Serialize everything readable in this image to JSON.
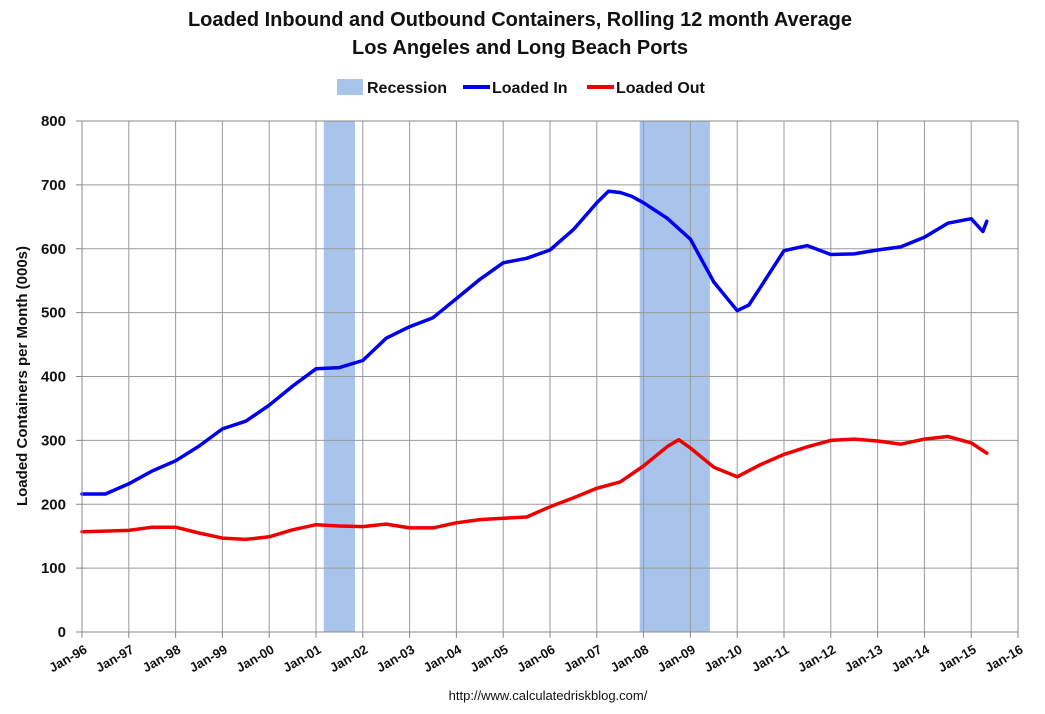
{
  "chart_data": {
    "type": "line",
    "title": [
      "Loaded Inbound and Outbound Containers, Rolling 12 month Average",
      "Los Angeles and Long Beach Ports"
    ],
    "ylabel": "Loaded Containers per Month (000s)",
    "xlabel": "",
    "ylim": [
      0,
      800
    ],
    "yticks": [
      0,
      100,
      200,
      300,
      400,
      500,
      600,
      700,
      800
    ],
    "xlim": [
      "1996-01",
      "2016-01"
    ],
    "xticks": [
      "Jan-96",
      "Jan-97",
      "Jan-98",
      "Jan-99",
      "Jan-00",
      "Jan-01",
      "Jan-02",
      "Jan-03",
      "Jan-04",
      "Jan-05",
      "Jan-06",
      "Jan-07",
      "Jan-08",
      "Jan-09",
      "Jan-10",
      "Jan-11",
      "Jan-12",
      "Jan-13",
      "Jan-14",
      "Jan-15",
      "Jan-16"
    ],
    "grid": true,
    "legend_placement": "top-center",
    "legend": [
      {
        "label": "Recession",
        "color": "#a9c4ea",
        "kind": "band"
      },
      {
        "label": "Loaded In",
        "color": "#0000ee",
        "kind": "line"
      },
      {
        "label": "Loaded Out",
        "color": "#ee0000",
        "kind": "line"
      }
    ],
    "recessions": [
      {
        "start": "2001-03",
        "end": "2001-11"
      },
      {
        "start": "2007-12",
        "end": "2009-06"
      }
    ],
    "series": [
      {
        "name": "Loaded In",
        "color": "#0000ee",
        "points": [
          [
            "1996-01",
            216
          ],
          [
            "1996-07",
            216
          ],
          [
            "1997-01",
            232
          ],
          [
            "1997-07",
            252
          ],
          [
            "1998-01",
            268
          ],
          [
            "1998-07",
            291
          ],
          [
            "1999-01",
            318
          ],
          [
            "1999-07",
            330
          ],
          [
            "2000-01",
            355
          ],
          [
            "2000-07",
            385
          ],
          [
            "2001-01",
            412
          ],
          [
            "2001-07",
            414
          ],
          [
            "2002-01",
            425
          ],
          [
            "2002-07",
            460
          ],
          [
            "2003-01",
            478
          ],
          [
            "2003-07",
            492
          ],
          [
            "2004-01",
            522
          ],
          [
            "2004-07",
            552
          ],
          [
            "2005-01",
            578
          ],
          [
            "2005-07",
            585
          ],
          [
            "2006-01",
            598
          ],
          [
            "2006-07",
            630
          ],
          [
            "2007-01",
            672
          ],
          [
            "2007-04",
            690
          ],
          [
            "2007-07",
            688
          ],
          [
            "2007-10",
            682
          ],
          [
            "2008-01",
            672
          ],
          [
            "2008-07",
            648
          ],
          [
            "2009-01",
            615
          ],
          [
            "2009-07",
            548
          ],
          [
            "2010-01",
            503
          ],
          [
            "2010-04",
            512
          ],
          [
            "2010-07",
            540
          ],
          [
            "2011-01",
            597
          ],
          [
            "2011-07",
            605
          ],
          [
            "2012-01",
            591
          ],
          [
            "2012-07",
            592
          ],
          [
            "2013-01",
            598
          ],
          [
            "2013-07",
            603
          ],
          [
            "2014-01",
            618
          ],
          [
            "2014-07",
            640
          ],
          [
            "2015-01",
            647
          ],
          [
            "2015-04",
            627
          ],
          [
            "2015-05",
            643
          ]
        ]
      },
      {
        "name": "Loaded Out",
        "color": "#ee0000",
        "points": [
          [
            "1996-01",
            157
          ],
          [
            "1996-07",
            158
          ],
          [
            "1997-01",
            159
          ],
          [
            "1997-07",
            164
          ],
          [
            "1998-01",
            164
          ],
          [
            "1998-07",
            155
          ],
          [
            "1999-01",
            147
          ],
          [
            "1999-07",
            145
          ],
          [
            "2000-01",
            149
          ],
          [
            "2000-07",
            160
          ],
          [
            "2001-01",
            168
          ],
          [
            "2001-07",
            166
          ],
          [
            "2002-01",
            165
          ],
          [
            "2002-07",
            169
          ],
          [
            "2003-01",
            163
          ],
          [
            "2003-07",
            163
          ],
          [
            "2004-01",
            171
          ],
          [
            "2004-07",
            176
          ],
          [
            "2005-01",
            178
          ],
          [
            "2005-07",
            180
          ],
          [
            "2006-01",
            196
          ],
          [
            "2006-07",
            210
          ],
          [
            "2007-01",
            225
          ],
          [
            "2007-07",
            235
          ],
          [
            "2008-01",
            260
          ],
          [
            "2008-07",
            290
          ],
          [
            "2008-10",
            301
          ],
          [
            "2009-01",
            288
          ],
          [
            "2009-07",
            258
          ],
          [
            "2010-01",
            243
          ],
          [
            "2010-07",
            262
          ],
          [
            "2011-01",
            278
          ],
          [
            "2011-07",
            290
          ],
          [
            "2012-01",
            300
          ],
          [
            "2012-07",
            302
          ],
          [
            "2013-01",
            299
          ],
          [
            "2013-07",
            294
          ],
          [
            "2014-01",
            302
          ],
          [
            "2014-07",
            306
          ],
          [
            "2015-01",
            296
          ],
          [
            "2015-05",
            280
          ]
        ]
      }
    ]
  },
  "source": "http://www.calculatedriskblog.com/"
}
